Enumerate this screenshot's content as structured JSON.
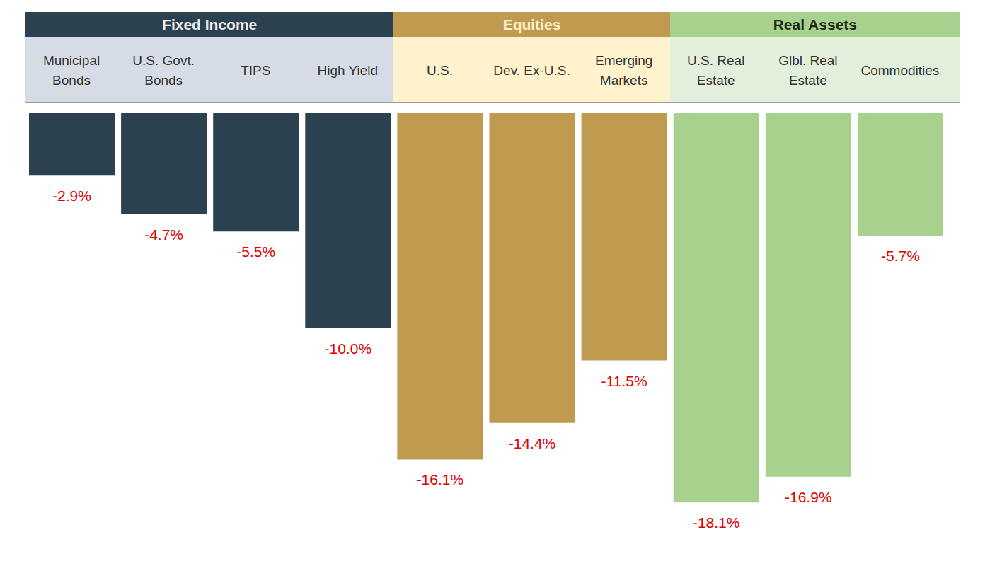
{
  "chart_data": {
    "type": "bar",
    "categories": [
      "Municipal\nBonds",
      "U.S. Govt.\nBonds",
      "TIPS",
      "High Yield",
      "U.S.",
      "Dev. Ex-U.S.",
      "Emerging\nMarkets",
      "U.S. Real\nEstate",
      "Glbl. Real\nEstate",
      "Commodities"
    ],
    "values": [
      -2.9,
      -4.7,
      -5.5,
      -10.0,
      -16.1,
      -14.4,
      -11.5,
      -18.1,
      -16.9,
      -5.7
    ],
    "value_labels": [
      "-2.9%",
      "-4.7%",
      "-5.5%",
      "-10.0%",
      "-16.1%",
      "-14.4%",
      "-11.5%",
      "-18.1%",
      "-16.9%",
      "-5.7%"
    ],
    "colors": [
      "#2c414f",
      "#2c414f",
      "#2c414f",
      "#2c414f",
      "#c09a4f",
      "#c09a4f",
      "#c09a4f",
      "#a9d18e",
      "#a9d18e",
      "#a9d18e"
    ],
    "groups": [
      {
        "name": "Fixed Income",
        "categories": [
          "Municipal\nBonds",
          "U.S. Govt.\nBonds",
          "TIPS",
          "High Yield"
        ],
        "color": "#2c414f"
      },
      {
        "name": "Equities",
        "categories": [
          "U.S.",
          "Dev. Ex-U.S.",
          "Emerging\nMarkets"
        ],
        "color": "#c09a4f"
      },
      {
        "name": "Real Assets",
        "categories": [
          "U.S. Real\nEstate",
          "Glbl. Real\nEstate",
          "Commodities"
        ],
        "color": "#a9d18e"
      }
    ],
    "ylim": [
      -20,
      0
    ],
    "yticks": [
      -20,
      0
    ],
    "data_labels": true,
    "tick_labels": false,
    "grid": false
  }
}
